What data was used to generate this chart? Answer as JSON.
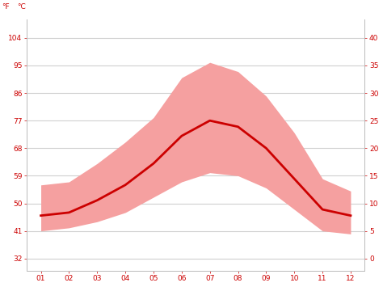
{
  "months": [
    1,
    2,
    3,
    4,
    5,
    6,
    7,
    8,
    9,
    10,
    11,
    12
  ],
  "month_labels": [
    "01",
    "02",
    "03",
    "04",
    "05",
    "06",
    "07",
    "08",
    "09",
    "10",
    "11",
    "12"
  ],
  "avg_temp_f": [
    46,
    47,
    51,
    56,
    63,
    72,
    77,
    75,
    68,
    58,
    48,
    46
  ],
  "max_temp_f": [
    56,
    57,
    63,
    70,
    78,
    91,
    96,
    93,
    85,
    73,
    58,
    54
  ],
  "min_temp_f": [
    41,
    42,
    44,
    47,
    52,
    57,
    60,
    59,
    55,
    48,
    41,
    40
  ],
  "y_ticks_f": [
    32,
    41,
    50,
    59,
    68,
    77,
    86,
    95,
    104
  ],
  "y_labels_f": [
    "32",
    "41",
    "50",
    "59",
    "68",
    "77",
    "86",
    "95",
    "104"
  ],
  "y_labels_c": [
    "0",
    "5",
    "10",
    "15",
    "20",
    "25",
    "30",
    "35",
    "40"
  ],
  "ylim_f": [
    28,
    110
  ],
  "band_color": "#f5a0a0",
  "line_color": "#cc0000",
  "grid_color": "#d0d0d0",
  "background_color": "#ffffff",
  "tick_label_color": "#cc0000",
  "figsize": [
    4.74,
    3.55
  ],
  "dpi": 100
}
